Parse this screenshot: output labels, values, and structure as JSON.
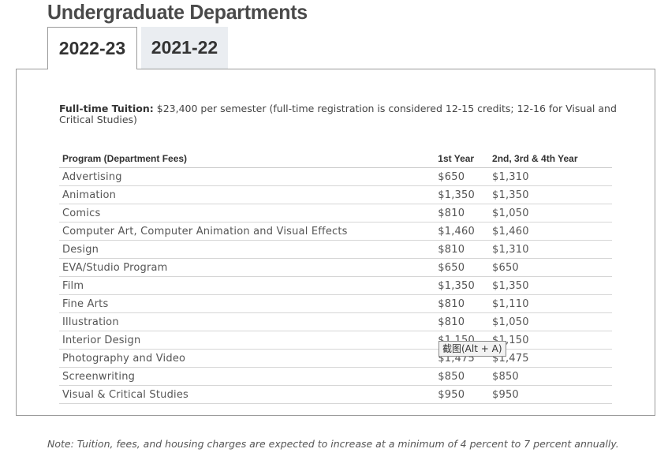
{
  "page": {
    "title": "Undergraduate Departments"
  },
  "tabs": [
    {
      "label": "2022-23",
      "active": true
    },
    {
      "label": "2021-22",
      "active": false
    }
  ],
  "intro": {
    "label": "Full-time Tuition:",
    "text": " $23,400 per semester (full-time registration is considered 12-15 credits; 12-16 for Visual and Critical Studies)"
  },
  "table": {
    "headers": [
      "Program (Department Fees)",
      "1st Year",
      "2nd, 3rd & 4th Year"
    ],
    "rows": [
      {
        "program": "Advertising",
        "first_year": "$650",
        "upper_years": "$1,310"
      },
      {
        "program": "Animation",
        "first_year": "$1,350",
        "upper_years": "$1,350"
      },
      {
        "program": "Comics",
        "first_year": "$810",
        "upper_years": "$1,050"
      },
      {
        "program": "Computer Art, Computer Animation and Visual Effects",
        "first_year": "$1,460",
        "upper_years": "$1,460"
      },
      {
        "program": "Design",
        "first_year": "$810",
        "upper_years": "$1,310"
      },
      {
        "program": "EVA/Studio Program",
        "first_year": "$650",
        "upper_years": "$650"
      },
      {
        "program": "Film",
        "first_year": "$1,350",
        "upper_years": "$1,350"
      },
      {
        "program": "Fine Arts",
        "first_year": "$810",
        "upper_years": "$1,110"
      },
      {
        "program": "Illustration",
        "first_year": "$810",
        "upper_years": "$1,050"
      },
      {
        "program": "Interior Design",
        "first_year": "$1,150",
        "upper_years": "$1,150"
      },
      {
        "program": "Photography and Video",
        "first_year": "$1,475",
        "upper_years": "$1,475"
      },
      {
        "program": "Screenwriting",
        "first_year": "$850",
        "upper_years": "$850"
      },
      {
        "program": "Visual & Critical Studies",
        "first_year": "$950",
        "upper_years": "$950"
      }
    ]
  },
  "tooltip": {
    "text": "截图(Alt + A)"
  },
  "note": {
    "text": "Note: Tuition, fees, and housing charges are expected to increase at a minimum of 4 percent to 7 percent annually."
  }
}
